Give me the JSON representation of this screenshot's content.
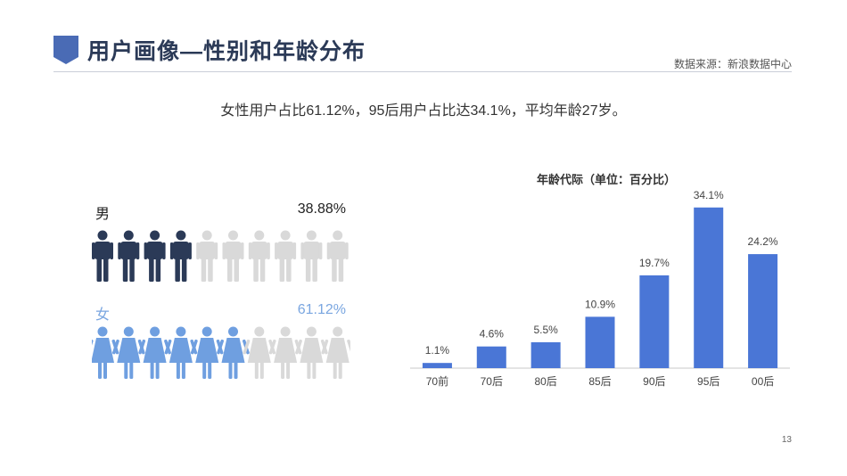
{
  "header": {
    "title": "用户画像—性别和年龄分布",
    "source": "数据来源：新浪数据中心"
  },
  "summary": "女性用户占比61.12%，95后用户占比达34.1%，平均年龄27岁。",
  "gender": {
    "male": {
      "label": "男",
      "percent_text": "38.88%",
      "percent": 38.88,
      "icons_total": 10,
      "icons_filled": 4,
      "color": "#2b3a57"
    },
    "female": {
      "label": "女",
      "percent_text": "61.12%",
      "percent": 61.12,
      "icons_total": 10,
      "icons_filled": 6,
      "color": "#6f9fe0"
    },
    "empty_color": "#d9d9d9"
  },
  "chart_data": {
    "type": "bar",
    "title": "年龄代际（单位：百分比）",
    "categories": [
      "70前",
      "70后",
      "80后",
      "85后",
      "90后",
      "95后",
      "00后"
    ],
    "values": [
      1.1,
      4.6,
      5.5,
      10.9,
      19.7,
      34.1,
      24.2
    ],
    "value_labels": [
      "1.1%",
      "4.6%",
      "5.5%",
      "10.9%",
      "19.7%",
      "34.1%",
      "24.2%"
    ],
    "ylim": [
      0,
      35
    ],
    "grid": false,
    "bar_color": "#4a76d6"
  },
  "page_number": "13"
}
